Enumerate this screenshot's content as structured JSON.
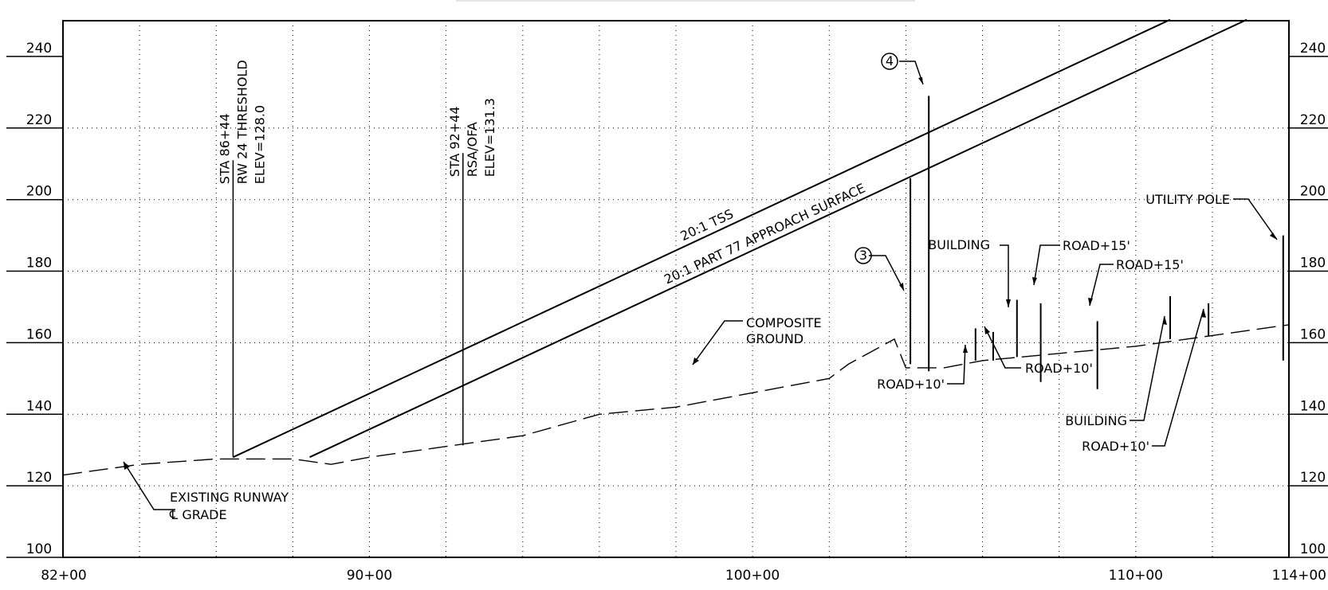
{
  "axes": {
    "y_ticks": [
      100,
      120,
      140,
      160,
      180,
      200,
      220,
      240
    ],
    "x_ticks": [
      {
        "sta": 8200,
        "label": "82+00"
      },
      {
        "sta": 9000,
        "label": "90+00"
      },
      {
        "sta": 10000,
        "label": "100+00"
      },
      {
        "sta": 11000,
        "label": "110+00"
      },
      {
        "sta": 11400,
        "label": "114+00"
      }
    ],
    "x_grid": [
      8400,
      8600,
      8800,
      9000,
      9200,
      9400,
      9600,
      9800,
      10000,
      10200,
      10400,
      10600,
      10800,
      11000,
      11200
    ]
  },
  "stations": [
    {
      "sta": 8644,
      "lines": [
        "STA 86+44",
        "RW 24 THRESHOLD",
        "ELEV=128.0"
      ],
      "elev": 128.0,
      "top": 211
    },
    {
      "sta": 9244,
      "lines": [
        "STA 92+44",
        "RSA/OFA",
        "ELEV=131.3"
      ],
      "elev": 131.3,
      "top": 213
    }
  ],
  "surfaces": {
    "tss": {
      "label": "20:1 TSS",
      "from": [
        8644,
        128.0
      ],
      "to": [
        11090,
        250.3
      ]
    },
    "part77": {
      "label": "20:1 PART 77 APPROACH SURFACE",
      "from": [
        8844,
        128.0
      ],
      "to": [
        11290,
        250.3
      ]
    }
  },
  "ground": {
    "label_1": "COMPOSITE",
    "label_2": "GROUND",
    "points": [
      [
        8200,
        123
      ],
      [
        8400,
        126
      ],
      [
        8600,
        127.5
      ],
      [
        8800,
        127.5
      ],
      [
        8900,
        126
      ],
      [
        9000,
        128
      ],
      [
        9200,
        131
      ],
      [
        9400,
        134
      ],
      [
        9600,
        140
      ],
      [
        9800,
        142
      ],
      [
        10000,
        146
      ],
      [
        10200,
        150
      ],
      [
        10250,
        154
      ],
      [
        10370,
        161
      ],
      [
        10400,
        153
      ],
      [
        10500,
        153
      ],
      [
        10600,
        155
      ],
      [
        10800,
        157
      ],
      [
        11000,
        159
      ],
      [
        11200,
        162
      ],
      [
        11400,
        165
      ]
    ]
  },
  "runway_grade": {
    "line_1": "EXISTING RUNWAY",
    "line_2": "℄ GRADE"
  },
  "callouts": {
    "three": "3",
    "four": "4"
  },
  "obstacles": {
    "three": {
      "sta": 10412,
      "bottom": 154,
      "top": 206
    },
    "four": {
      "sta": 10460,
      "bottom": 152,
      "top": 229
    },
    "road_a": {
      "sta": 10582,
      "bottom": 155,
      "top": 164,
      "label": "ROAD+10'"
    },
    "road_b": {
      "sta": 10628,
      "bottom": 155,
      "top": 163,
      "label": "ROAD+10'"
    },
    "building_a": {
      "sta": 10690,
      "bottom": 156,
      "top": 172,
      "label": "BUILDING"
    },
    "road_c": {
      "sta": 10752,
      "bottom": 149,
      "top": 171,
      "label": "ROAD+15'"
    },
    "road_d": {
      "sta": 10900,
      "bottom": 147,
      "top": 166,
      "label": "ROAD+15'"
    },
    "building_b": {
      "sta": 11090,
      "bottom": 161,
      "top": 173,
      "label": "BUILDING"
    },
    "road_e": {
      "sta": 11190,
      "bottom": 162,
      "top": 171,
      "label": "ROAD+10'"
    },
    "pole": {
      "sta": 11385,
      "bottom": 155,
      "top": 190,
      "label": "UTILITY POLE"
    }
  }
}
